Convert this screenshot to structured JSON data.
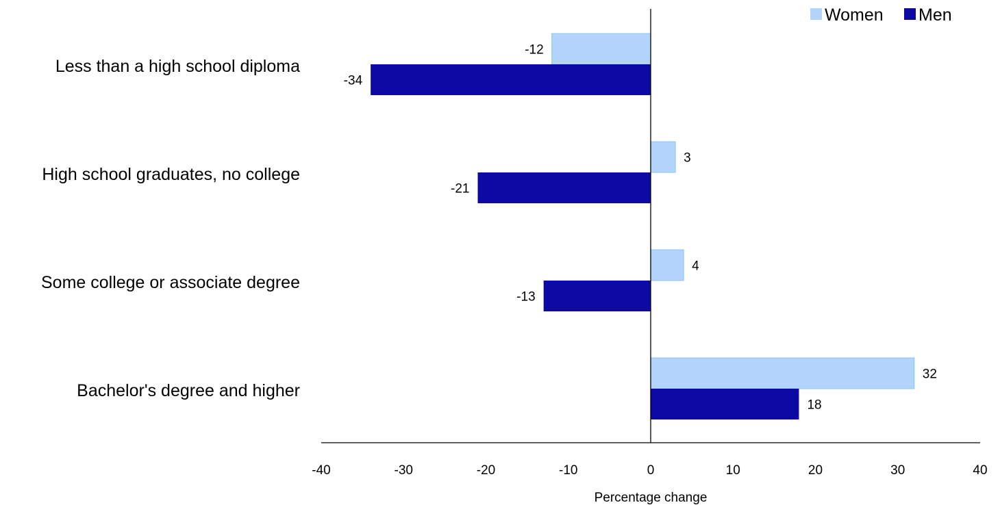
{
  "chart_data": {
    "type": "bar",
    "orientation": "horizontal",
    "categories": [
      "Less than a high school diploma",
      "High school graduates, no college",
      "Some college or associate degree",
      "Bachelor's degree and higher"
    ],
    "series": [
      {
        "name": "Women",
        "values": [
          -12,
          3,
          4,
          32
        ],
        "color": "#b3d4fb"
      },
      {
        "name": "Men",
        "values": [
          -34,
          -21,
          -13,
          18
        ],
        "color": "#0d09a3"
      }
    ],
    "xlabel": "Percentage change",
    "xlim": [
      -40,
      40
    ],
    "xticks": [
      "-40",
      "-30",
      "-20",
      "-10",
      "0",
      "10",
      "20",
      "30",
      "40"
    ],
    "grid": false,
    "legend_position": "top-right",
    "data_labels": true
  }
}
